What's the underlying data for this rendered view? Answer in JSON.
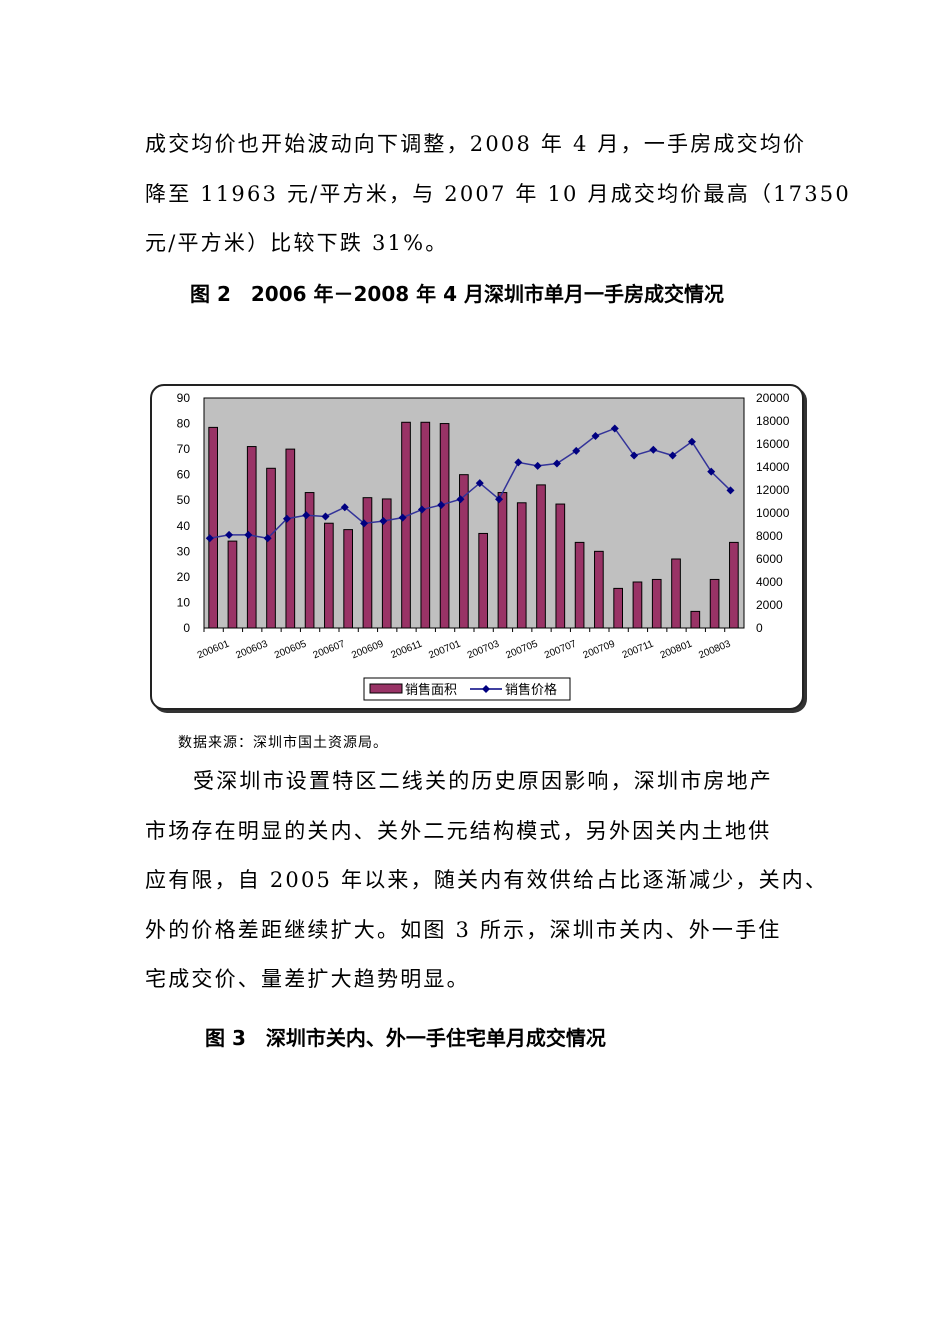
{
  "text": {
    "p1": [
      "成交均价也开始波动向下调整，2008 年 4 月，一手房成交均价",
      "降至 11963 元/平方米，与 2007 年 10 月成交均价最高（17350",
      "元/平方米）比较下跌 31%。"
    ],
    "fig2_caption": "图 2　2006 年－2008 年 4 月深圳市单月一手房成交情况",
    "source": "数据来源：深圳市国土资源局。",
    "p2": [
      "受深圳市设置特区二线关的历史原因影响，深圳市房地产",
      "市场存在明显的关内、关外二元结构模式，另外因关内土地供",
      "应有限，自 2005 年以来，随关内有效供给占比逐渐减少，关内、",
      "外的价格差距继续扩大。如图 3 所示，深圳市关内、外一手住",
      "宅成交价、量差扩大趋势明显。"
    ],
    "fig3_caption": "图 3　深圳市关内、外一手住宅单月成交情况"
  },
  "chart_data": {
    "type": "bar+line",
    "categories": [
      "200601",
      "200602",
      "200603",
      "200604",
      "200605",
      "200606",
      "200607",
      "200608",
      "200609",
      "200610",
      "200611",
      "200612",
      "200701",
      "200702",
      "200703",
      "200704",
      "200705",
      "200706",
      "200707",
      "200708",
      "200709",
      "200710",
      "200711",
      "200712",
      "200801",
      "200802",
      "200803",
      "200804"
    ],
    "x_tick_labels": [
      "200601",
      "200603",
      "200605",
      "200607",
      "200609",
      "200611",
      "200701",
      "200703",
      "200705",
      "200707",
      "200709",
      "200711",
      "200801",
      "200803"
    ],
    "series": [
      {
        "name": "销售面积",
        "type": "bar",
        "axis": "left",
        "color": "#993366",
        "values": [
          78.5,
          34,
          71,
          62.5,
          70,
          53,
          41,
          38.5,
          51,
          50.5,
          80.5,
          80.5,
          80,
          60,
          37,
          53,
          49,
          56,
          48.5,
          33.5,
          30,
          15.5,
          18,
          19,
          27,
          6.5,
          19,
          33.5
        ]
      },
      {
        "name": "销售价格",
        "type": "line",
        "axis": "right",
        "color": "#000080",
        "values": [
          7800,
          8100,
          8100,
          7800,
          9500,
          9800,
          9700,
          10500,
          9100,
          9300,
          9600,
          10300,
          10700,
          11200,
          12600,
          11200,
          14400,
          14100,
          14300,
          15400,
          16700,
          17350,
          15000,
          15500,
          15000,
          16200,
          13600,
          11963
        ]
      }
    ],
    "y_left": {
      "range": [
        0,
        90
      ],
      "ticks": [
        0,
        10,
        20,
        30,
        40,
        50,
        60,
        70,
        80,
        90
      ]
    },
    "y_right": {
      "range": [
        0,
        20000
      ],
      "ticks": [
        0,
        2000,
        4000,
        6000,
        8000,
        10000,
        12000,
        14000,
        16000,
        18000,
        20000
      ]
    },
    "plot_background": "#c0c0c0",
    "legend_position": "bottom"
  }
}
